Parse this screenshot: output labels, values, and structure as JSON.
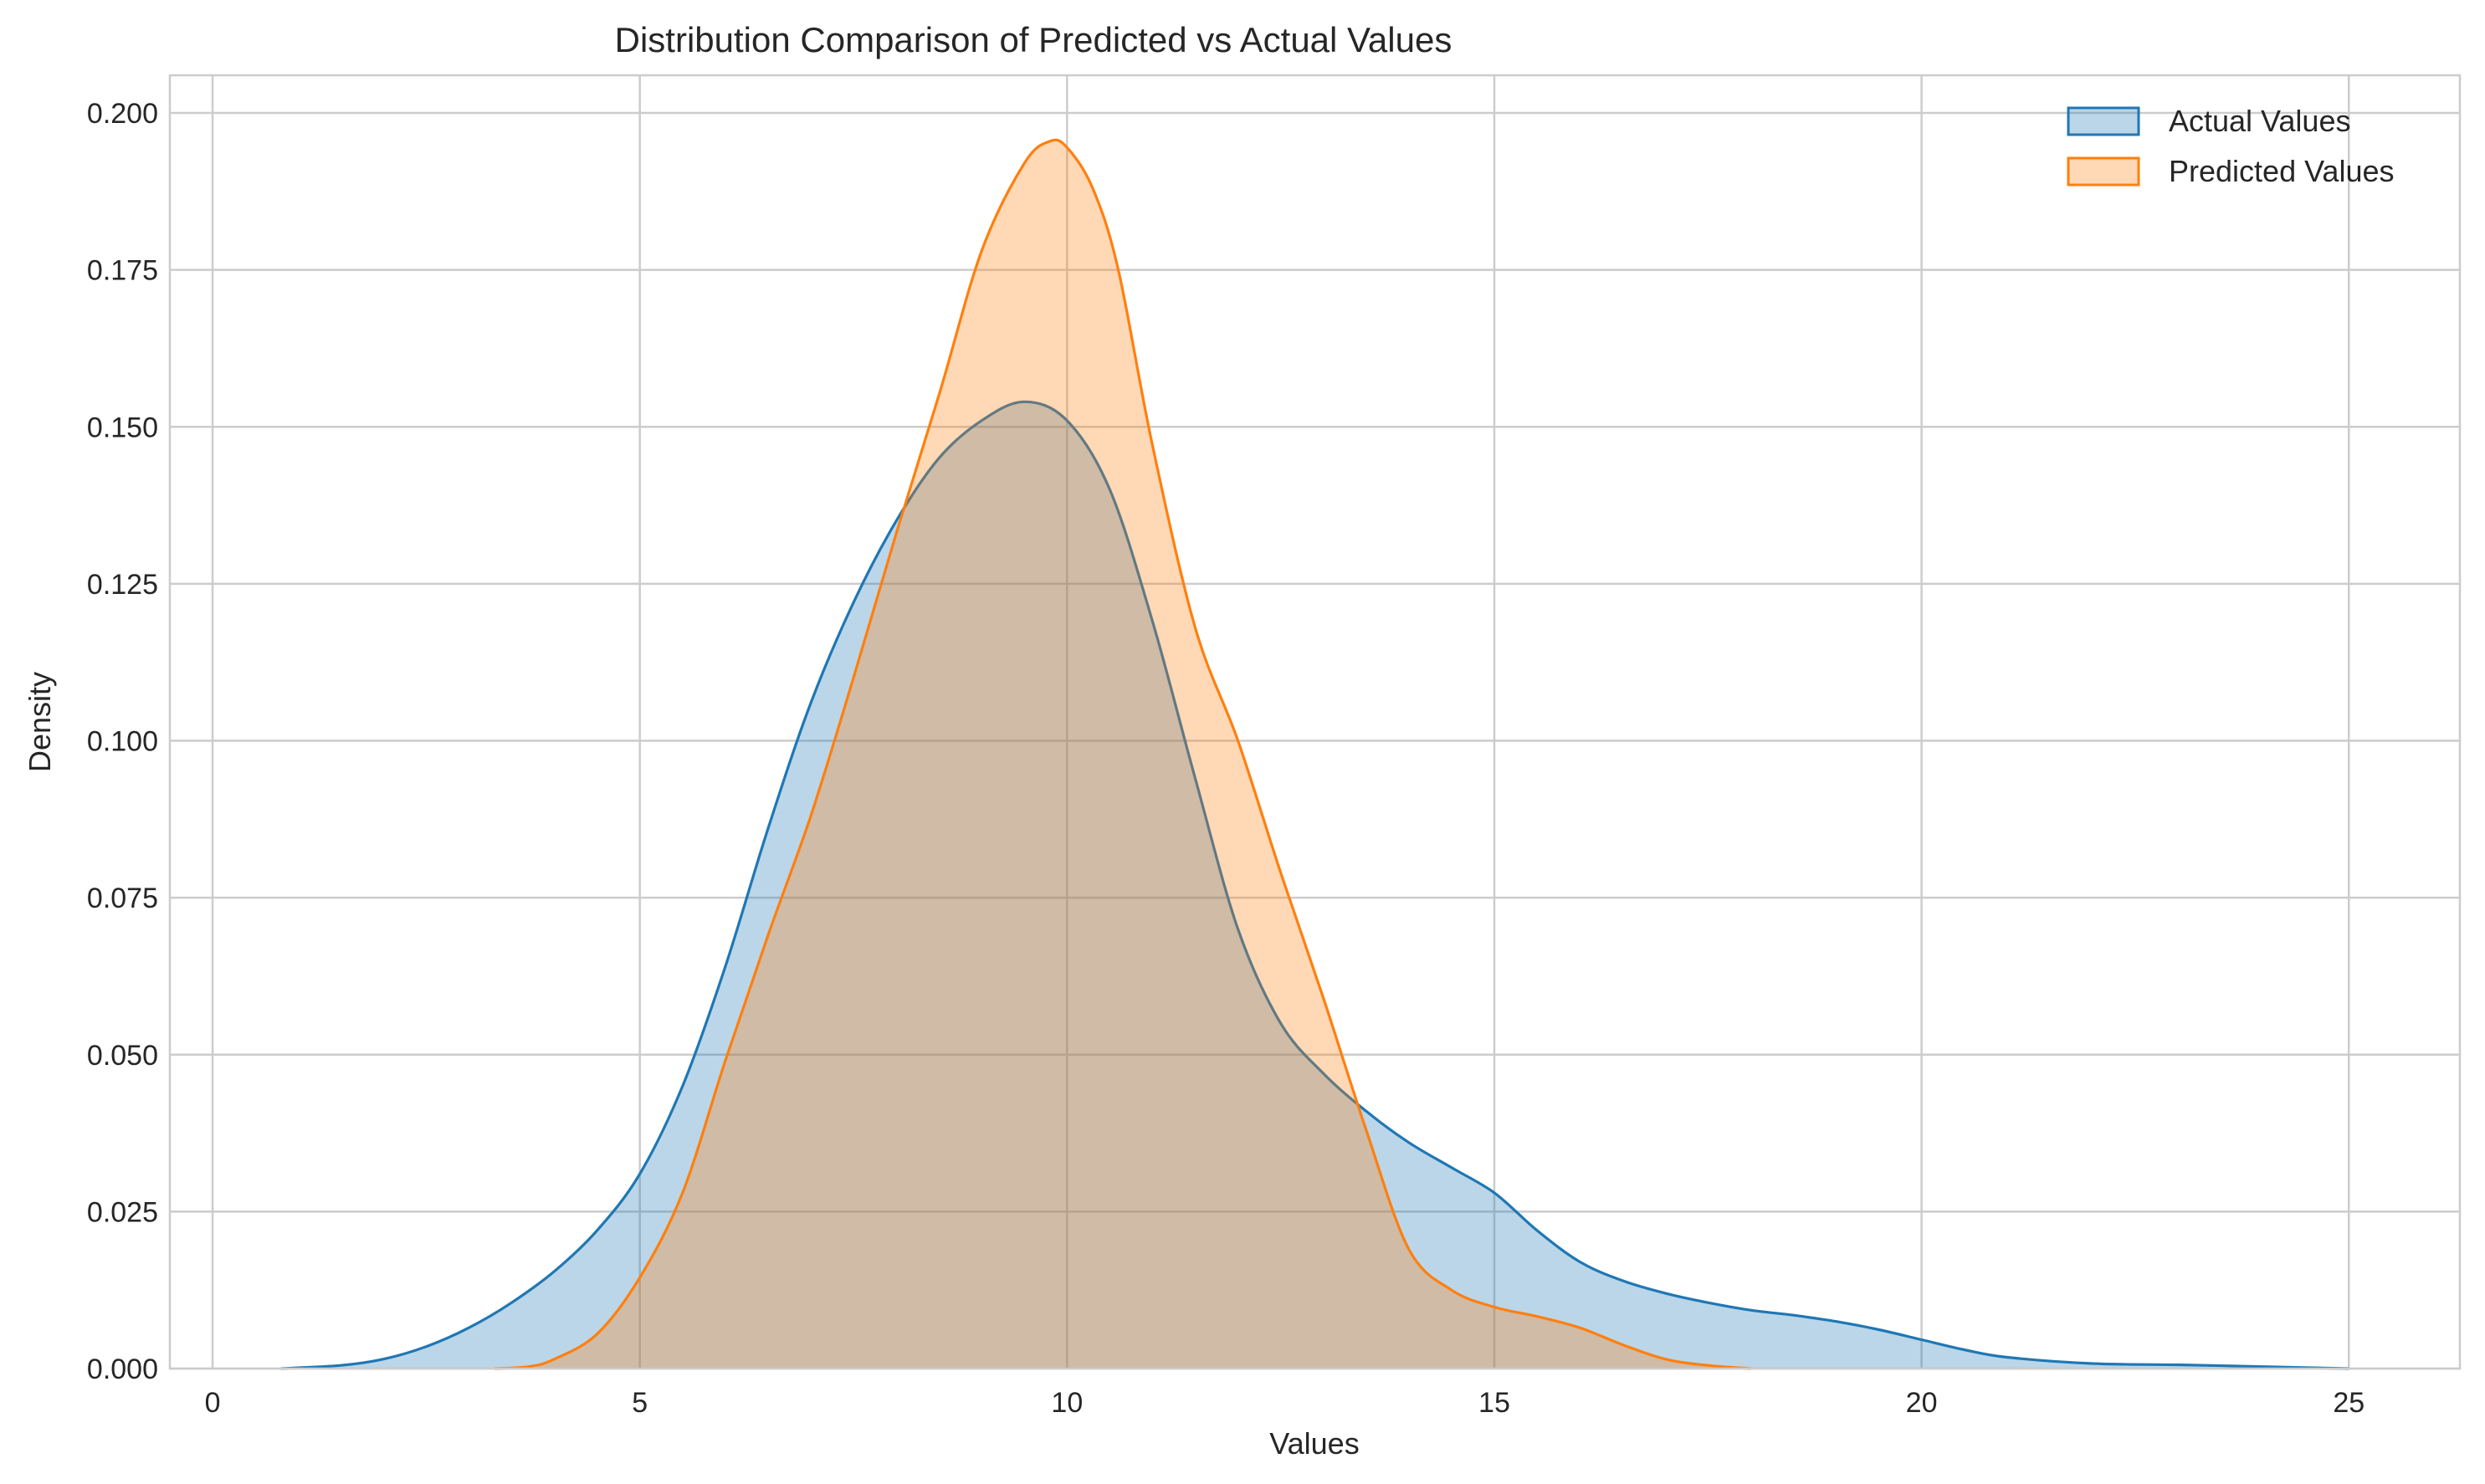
{
  "chart_data": {
    "type": "area",
    "title": "Distribution Comparison of Predicted vs Actual Values",
    "xlabel": "Values",
    "ylabel": "Density",
    "xlim": [
      -0.5,
      26.3
    ],
    "ylim": [
      0,
      0.206
    ],
    "xticks": [
      0,
      5,
      10,
      15,
      20,
      25
    ],
    "xtick_labels": [
      "0",
      "5",
      "10",
      "15",
      "20",
      "25"
    ],
    "yticks": [
      0,
      0.025,
      0.05,
      0.075,
      0.1,
      0.125,
      0.15,
      0.175,
      0.2
    ],
    "ytick_labels": [
      "0.000",
      "0.025",
      "0.050",
      "0.075",
      "0.100",
      "0.125",
      "0.150",
      "0.175",
      "0.200"
    ],
    "grid": true,
    "legend_position": "top-right",
    "series": [
      {
        "name": "Actual Values",
        "color": "#1f77b4",
        "fill_opacity": 0.3,
        "x": [
          0.8,
          1.5,
          2.0,
          2.5,
          3.0,
          3.5,
          4.0,
          4.5,
          5.0,
          5.5,
          6.0,
          6.5,
          7.0,
          7.5,
          8.0,
          8.5,
          9.0,
          9.5,
          10.0,
          10.5,
          11.0,
          11.5,
          12.0,
          12.5,
          13.0,
          13.5,
          14.0,
          14.5,
          15.0,
          15.5,
          16.0,
          16.5,
          17.0,
          17.5,
          18.0,
          18.5,
          19.0,
          19.5,
          20.0,
          20.5,
          21.0,
          22.0,
          23.0,
          24.0,
          25.0
        ],
        "y": [
          0.0,
          0.0005,
          0.0015,
          0.0035,
          0.0065,
          0.0105,
          0.0155,
          0.022,
          0.031,
          0.045,
          0.064,
          0.086,
          0.106,
          0.122,
          0.135,
          0.145,
          0.151,
          0.154,
          0.151,
          0.14,
          0.119,
          0.094,
          0.07,
          0.055,
          0.047,
          0.041,
          0.036,
          0.032,
          0.028,
          0.022,
          0.017,
          0.014,
          0.012,
          0.0105,
          0.0093,
          0.0085,
          0.0075,
          0.0062,
          0.0046,
          0.003,
          0.0018,
          0.0008,
          0.0006,
          0.0003,
          0.0
        ]
      },
      {
        "name": "Predicted Values",
        "color": "#ff7f0e",
        "fill_opacity": 0.3,
        "x": [
          3.3,
          3.7,
          4.0,
          4.5,
          5.0,
          5.5,
          6.0,
          6.5,
          7.0,
          7.5,
          8.0,
          8.5,
          9.0,
          9.5,
          9.8,
          10.0,
          10.3,
          10.6,
          11.0,
          11.5,
          12.0,
          12.5,
          13.0,
          13.5,
          14.0,
          14.5,
          15.0,
          15.5,
          16.0,
          16.5,
          17.0,
          17.5,
          18.0
        ],
        "y": [
          0.0,
          0.0003,
          0.0015,
          0.0055,
          0.0145,
          0.028,
          0.049,
          0.069,
          0.088,
          0.11,
          0.133,
          0.155,
          0.178,
          0.192,
          0.1955,
          0.1945,
          0.188,
          0.175,
          0.147,
          0.118,
          0.1,
          0.079,
          0.059,
          0.038,
          0.019,
          0.0125,
          0.0098,
          0.0083,
          0.0065,
          0.0038,
          0.0015,
          0.0005,
          0.0
        ]
      }
    ]
  }
}
